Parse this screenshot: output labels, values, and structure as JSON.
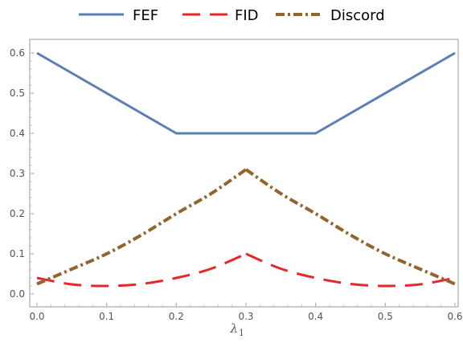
{
  "chart_data": {
    "type": "line",
    "title": "",
    "xlabel": "λ",
    "xlabel_subscript": "1",
    "ylabel": "",
    "xlim": [
      0,
      0.6
    ],
    "ylim": [
      0,
      0.6
    ],
    "x_ticks": [
      0.0,
      0.1,
      0.2,
      0.3,
      0.4,
      0.5,
      0.6
    ],
    "x_tick_labels": [
      "0.0",
      "0.1",
      "0.2",
      "0.3",
      "0.4",
      "0.5",
      "0.6"
    ],
    "y_ticks": [
      0.0,
      0.1,
      0.2,
      0.3,
      0.4,
      0.5,
      0.6
    ],
    "y_tick_labels": [
      "0.0",
      "0.1",
      "0.2",
      "0.3",
      "0.4",
      "0.5",
      "0.6"
    ],
    "grid": false,
    "legend_position": "top-center",
    "series": [
      {
        "name": "FEF",
        "color": "#5b7fb5",
        "style": "solid",
        "x": [
          0.0,
          0.2,
          0.3,
          0.4,
          0.6
        ],
        "y": [
          0.6,
          0.4,
          0.4,
          0.4,
          0.6
        ]
      },
      {
        "name": "FID",
        "color": "#e8262a",
        "style": "dashed",
        "x": [
          0.0,
          0.05,
          0.1,
          0.15,
          0.2,
          0.25,
          0.3,
          0.35,
          0.4,
          0.45,
          0.5,
          0.55,
          0.6
        ],
        "y": [
          0.04,
          0.024,
          0.02,
          0.025,
          0.04,
          0.063,
          0.1,
          0.063,
          0.04,
          0.025,
          0.02,
          0.024,
          0.04
        ]
      },
      {
        "name": "Discord",
        "color": "#93652e",
        "style": "dash-dot",
        "x": [
          0.0,
          0.05,
          0.1,
          0.15,
          0.2,
          0.25,
          0.3,
          0.35,
          0.4,
          0.45,
          0.5,
          0.55,
          0.6
        ],
        "y": [
          0.025,
          0.062,
          0.1,
          0.147,
          0.2,
          0.25,
          0.31,
          0.25,
          0.2,
          0.147,
          0.1,
          0.062,
          0.025
        ]
      }
    ]
  }
}
